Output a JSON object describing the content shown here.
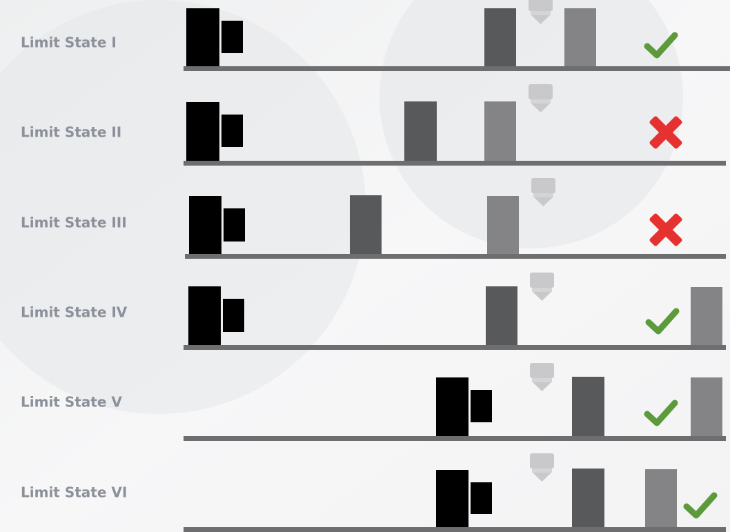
{
  "labels": [
    "Limit State I",
    "Limit State II",
    "Limit State III",
    "Limit State IV",
    "Limit State V",
    "Limit State VI"
  ]
}
